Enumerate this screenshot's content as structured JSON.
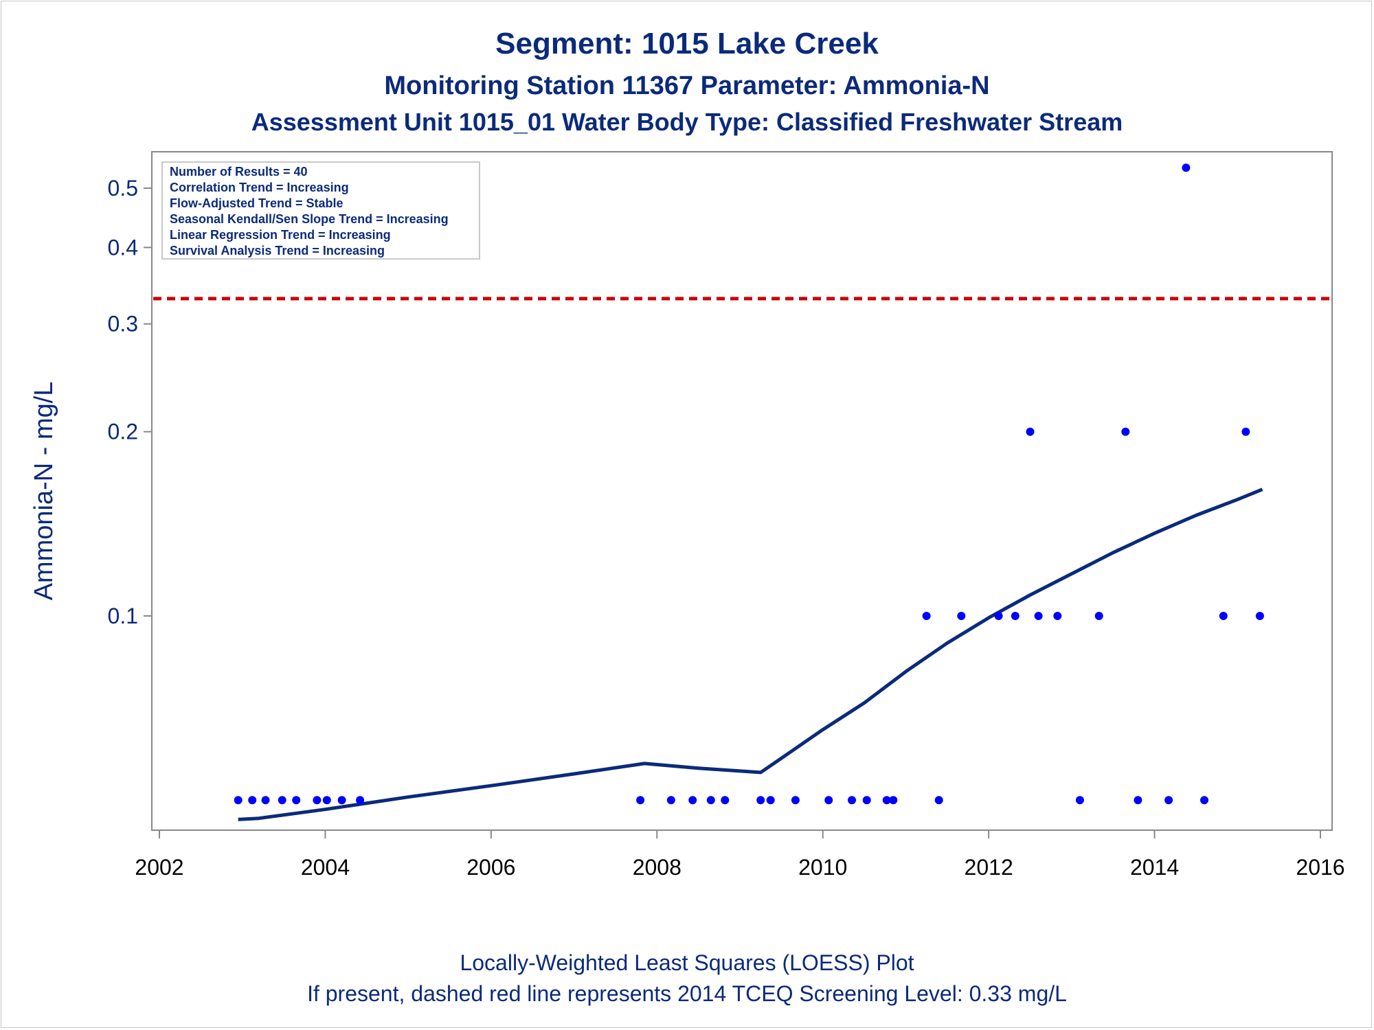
{
  "title": "Segment: 1015  Lake Creek",
  "subtitle1": "Monitoring Station 11367 Parameter: Ammonia-N",
  "subtitle2": "Assessment Unit 1015_01   Water Body Type: Classified Freshwater Stream",
  "footnote1": "Locally-Weighted Least Squares (LOESS) Plot",
  "footnote2": "If present, dashed red line represents 2014 TCEQ Screening Level: 0.33 mg/L",
  "stats_box": [
    "Number of Results = 40",
    "Correlation Trend = Increasing",
    "Flow-Adjusted Trend = Stable",
    "Seasonal Kendall/Sen Slope Trend = Increasing",
    "Linear Regression Trend = Increasing",
    "Survival Analysis Trend = Increasing"
  ],
  "colors": {
    "text": "#0b2a7a",
    "points": "#0000ff",
    "loess_line": "#0b2a7a",
    "screening_line": "#cc0000",
    "axis": "#888888"
  },
  "chart_data": {
    "type": "scatter",
    "xlabel": "",
    "ylabel": "Ammonia-N - mg/L",
    "y_scale": "log",
    "xlim": [
      2002,
      2016
    ],
    "ylim": [
      0.04,
      0.57
    ],
    "x_ticks": [
      2002,
      2004,
      2006,
      2008,
      2010,
      2012,
      2014,
      2016
    ],
    "y_ticks": [
      0.1,
      0.2,
      0.3,
      0.4,
      0.5
    ],
    "y_tick_labels": [
      "0.1",
      "0.2",
      "0.3",
      "0.4",
      "0.5"
    ],
    "screening_level": 0.33,
    "points": [
      {
        "x": 2002.95,
        "y": 0.05
      },
      {
        "x": 2003.12,
        "y": 0.05
      },
      {
        "x": 2003.28,
        "y": 0.05
      },
      {
        "x": 2003.48,
        "y": 0.05
      },
      {
        "x": 2003.65,
        "y": 0.05
      },
      {
        "x": 2003.9,
        "y": 0.05
      },
      {
        "x": 2004.02,
        "y": 0.05
      },
      {
        "x": 2004.2,
        "y": 0.05
      },
      {
        "x": 2004.42,
        "y": 0.05
      },
      {
        "x": 2007.8,
        "y": 0.05
      },
      {
        "x": 2008.17,
        "y": 0.05
      },
      {
        "x": 2008.43,
        "y": 0.05
      },
      {
        "x": 2008.65,
        "y": 0.05
      },
      {
        "x": 2008.82,
        "y": 0.05
      },
      {
        "x": 2009.25,
        "y": 0.05
      },
      {
        "x": 2009.37,
        "y": 0.05
      },
      {
        "x": 2009.67,
        "y": 0.05
      },
      {
        "x": 2010.07,
        "y": 0.05
      },
      {
        "x": 2010.35,
        "y": 0.05
      },
      {
        "x": 2010.53,
        "y": 0.05
      },
      {
        "x": 2010.77,
        "y": 0.05
      },
      {
        "x": 2010.85,
        "y": 0.05
      },
      {
        "x": 2011.25,
        "y": 0.1
      },
      {
        "x": 2011.4,
        "y": 0.05
      },
      {
        "x": 2011.67,
        "y": 0.1
      },
      {
        "x": 2012.12,
        "y": 0.1
      },
      {
        "x": 2012.32,
        "y": 0.1
      },
      {
        "x": 2012.5,
        "y": 0.2
      },
      {
        "x": 2012.6,
        "y": 0.1
      },
      {
        "x": 2012.83,
        "y": 0.1
      },
      {
        "x": 2013.1,
        "y": 0.05
      },
      {
        "x": 2013.33,
        "y": 0.1
      },
      {
        "x": 2013.65,
        "y": 0.2
      },
      {
        "x": 2013.8,
        "y": 0.05
      },
      {
        "x": 2014.17,
        "y": 0.05
      },
      {
        "x": 2014.38,
        "y": 0.54
      },
      {
        "x": 2014.6,
        "y": 0.05
      },
      {
        "x": 2014.83,
        "y": 0.1
      },
      {
        "x": 2015.1,
        "y": 0.2
      },
      {
        "x": 2015.27,
        "y": 0.1
      }
    ],
    "loess": [
      {
        "x": 2002.95,
        "y": 0.0465
      },
      {
        "x": 2003.2,
        "y": 0.0467
      },
      {
        "x": 2004.0,
        "y": 0.0483
      },
      {
        "x": 2005.0,
        "y": 0.0506
      },
      {
        "x": 2006.0,
        "y": 0.0528
      },
      {
        "x": 2007.0,
        "y": 0.0552
      },
      {
        "x": 2007.85,
        "y": 0.0574
      },
      {
        "x": 2008.5,
        "y": 0.0564
      },
      {
        "x": 2009.25,
        "y": 0.0555
      },
      {
        "x": 2009.4,
        "y": 0.0573
      },
      {
        "x": 2010.0,
        "y": 0.0652
      },
      {
        "x": 2010.5,
        "y": 0.0721
      },
      {
        "x": 2011.0,
        "y": 0.0811
      },
      {
        "x": 2011.5,
        "y": 0.0903
      },
      {
        "x": 2012.0,
        "y": 0.0993
      },
      {
        "x": 2012.5,
        "y": 0.1082
      },
      {
        "x": 2013.0,
        "y": 0.1172
      },
      {
        "x": 2013.5,
        "y": 0.1269
      },
      {
        "x": 2014.0,
        "y": 0.1365
      },
      {
        "x": 2014.5,
        "y": 0.146
      },
      {
        "x": 2015.0,
        "y": 0.155
      },
      {
        "x": 2015.3,
        "y": 0.161
      }
    ]
  }
}
